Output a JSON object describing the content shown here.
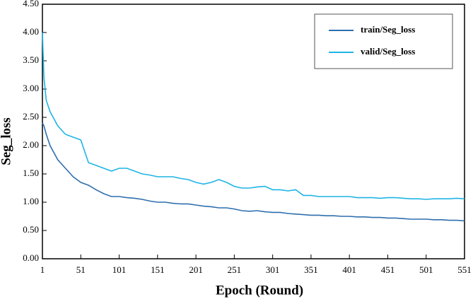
{
  "chart_data": {
    "type": "line",
    "x_label": "Epoch  (Round)",
    "y_label": "Seg_loss",
    "x": [
      1,
      3,
      6,
      11,
      21,
      31,
      41,
      51,
      61,
      71,
      81,
      91,
      101,
      111,
      121,
      131,
      141,
      151,
      161,
      171,
      181,
      191,
      201,
      211,
      221,
      231,
      241,
      251,
      261,
      271,
      281,
      291,
      301,
      311,
      321,
      331,
      341,
      351,
      361,
      371,
      381,
      391,
      401,
      411,
      421,
      431,
      441,
      451,
      461,
      471,
      481,
      491,
      501,
      511,
      521,
      531,
      541,
      551
    ],
    "series": [
      {
        "name": "train/Seg_loss",
        "color": "#2e6fad",
        "values": [
          2.4,
          2.35,
          2.2,
          2.0,
          1.75,
          1.6,
          1.45,
          1.35,
          1.3,
          1.22,
          1.15,
          1.1,
          1.1,
          1.08,
          1.07,
          1.05,
          1.02,
          1.0,
          1.0,
          0.98,
          0.97,
          0.97,
          0.95,
          0.93,
          0.92,
          0.9,
          0.9,
          0.88,
          0.85,
          0.84,
          0.85,
          0.83,
          0.82,
          0.82,
          0.8,
          0.79,
          0.78,
          0.77,
          0.77,
          0.76,
          0.76,
          0.75,
          0.75,
          0.74,
          0.74,
          0.73,
          0.73,
          0.72,
          0.72,
          0.71,
          0.7,
          0.7,
          0.7,
          0.69,
          0.69,
          0.68,
          0.68,
          0.67
        ]
      },
      {
        "name": "valid/Seg_loss",
        "color": "#1fb4e6",
        "values": [
          4.0,
          3.2,
          2.8,
          2.6,
          2.35,
          2.2,
          2.15,
          2.1,
          1.7,
          1.65,
          1.6,
          1.55,
          1.6,
          1.6,
          1.55,
          1.5,
          1.48,
          1.45,
          1.45,
          1.45,
          1.42,
          1.4,
          1.35,
          1.32,
          1.35,
          1.4,
          1.35,
          1.28,
          1.25,
          1.25,
          1.27,
          1.28,
          1.22,
          1.22,
          1.2,
          1.22,
          1.12,
          1.12,
          1.1,
          1.1,
          1.1,
          1.1,
          1.1,
          1.08,
          1.08,
          1.08,
          1.07,
          1.08,
          1.08,
          1.07,
          1.06,
          1.06,
          1.05,
          1.06,
          1.06,
          1.06,
          1.07,
          1.06
        ]
      }
    ],
    "xlim": [
      1,
      551
    ],
    "xticks": [
      1,
      51,
      101,
      151,
      201,
      251,
      301,
      351,
      401,
      451,
      501,
      551
    ],
    "ylim": [
      0,
      4.5
    ],
    "yticks": [
      {
        "value": 0,
        "label": "0.00"
      },
      {
        "value": 0.5,
        "label": "0.50"
      },
      {
        "value": 1,
        "label": "1.00"
      },
      {
        "value": 1.5,
        "label": "1.50"
      },
      {
        "value": 2,
        "label": "2.00"
      },
      {
        "value": 2.5,
        "label": "2.50"
      },
      {
        "value": 3,
        "label": "3.00"
      },
      {
        "value": 3.5,
        "label": "3.50"
      },
      {
        "value": 4,
        "label": "4.00"
      },
      {
        "value": 4.5,
        "label": "4.50"
      }
    ],
    "legend": "upper right"
  }
}
